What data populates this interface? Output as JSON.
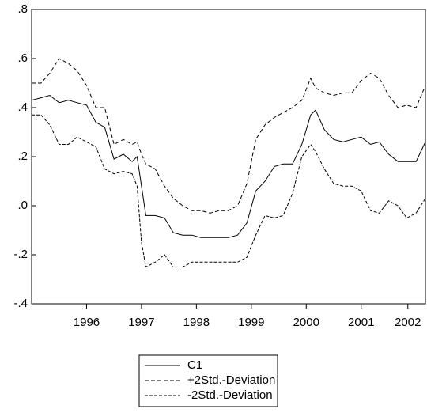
{
  "chart_data": {
    "type": "line",
    "x": [
      1995.5,
      1995.67,
      1995.83,
      1996.0,
      1996.17,
      1996.33,
      1996.5,
      1996.67,
      1996.83,
      1997.0,
      1997.17,
      1997.33,
      1997.42,
      1997.5,
      1997.58,
      1997.75,
      1997.92,
      1998.08,
      1998.25,
      1998.42,
      1998.58,
      1998.75,
      1998.92,
      1999.08,
      1999.25,
      1999.42,
      1999.58,
      1999.75,
      1999.92,
      2000.08,
      2000.25,
      2000.42,
      2000.58,
      2000.67,
      2000.83,
      2001.0,
      2001.17,
      2001.33,
      2001.5,
      2001.67,
      2001.83,
      2002.0,
      2002.17,
      2002.33,
      2002.5,
      2002.67
    ],
    "series": [
      {
        "name": "C1",
        "color": "#000000",
        "dash": "none",
        "values": [
          0.43,
          0.44,
          0.45,
          0.42,
          0.43,
          0.42,
          0.41,
          0.34,
          0.32,
          0.19,
          0.21,
          0.18,
          0.2,
          0.08,
          -0.04,
          -0.04,
          -0.05,
          -0.11,
          -0.12,
          -0.12,
          -0.13,
          -0.13,
          -0.13,
          -0.13,
          -0.12,
          -0.07,
          0.06,
          0.1,
          0.16,
          0.17,
          0.17,
          0.25,
          0.37,
          0.39,
          0.31,
          0.27,
          0.26,
          0.27,
          0.28,
          0.25,
          0.26,
          0.21,
          0.18,
          0.18,
          0.18,
          0.26
        ]
      },
      {
        "name": "+2Std.-Deviation",
        "color": "#000000",
        "dash": "5,3",
        "values": [
          0.5,
          0.5,
          0.54,
          0.6,
          0.58,
          0.55,
          0.49,
          0.4,
          0.4,
          0.25,
          0.27,
          0.25,
          0.26,
          0.21,
          0.17,
          0.15,
          0.08,
          0.03,
          0.0,
          -0.02,
          -0.02,
          -0.03,
          -0.02,
          -0.02,
          0.0,
          0.09,
          0.27,
          0.33,
          0.36,
          0.38,
          0.4,
          0.43,
          0.52,
          0.48,
          0.46,
          0.45,
          0.46,
          0.46,
          0.51,
          0.54,
          0.52,
          0.45,
          0.4,
          0.41,
          0.4,
          0.49
        ]
      },
      {
        "name": "-2Std.-Deviation",
        "color": "#000000",
        "dash": "4,2",
        "values": [
          0.37,
          0.37,
          0.33,
          0.25,
          0.25,
          0.28,
          0.26,
          0.24,
          0.15,
          0.13,
          0.14,
          0.13,
          0.08,
          -0.15,
          -0.25,
          -0.23,
          -0.2,
          -0.25,
          -0.25,
          -0.23,
          -0.23,
          -0.23,
          -0.23,
          -0.23,
          -0.23,
          -0.21,
          -0.12,
          -0.04,
          -0.05,
          -0.04,
          0.05,
          0.2,
          0.25,
          0.22,
          0.15,
          0.09,
          0.08,
          0.08,
          0.06,
          -0.02,
          -0.03,
          0.02,
          0.0,
          -0.05,
          -0.03,
          0.03
        ]
      }
    ],
    "xlim": [
      1995.5,
      2002.67
    ],
    "xticks": [
      {
        "value": 1996.5,
        "label": "1996"
      },
      {
        "value": 1997.5,
        "label": "1997"
      },
      {
        "value": 1998.5,
        "label": "1998"
      },
      {
        "value": 1999.5,
        "label": "1999"
      },
      {
        "value": 2000.5,
        "label": "2000"
      },
      {
        "value": 2001.5,
        "label": "2001"
      },
      {
        "value": 2002.35,
        "label": "2002"
      }
    ],
    "ylim": [
      -0.4,
      0.8
    ],
    "yticks": [
      {
        "value": -0.4,
        "label": "-.4"
      },
      {
        "value": -0.2,
        "label": "-.2"
      },
      {
        "value": 0,
        "label": ".0"
      },
      {
        "value": 0.2,
        "label": ".2"
      },
      {
        "value": 0.4,
        "label": ".4"
      },
      {
        "value": 0.6,
        "label": ".6"
      },
      {
        "value": 0.8,
        "label": ".8"
      }
    ],
    "grid": false
  }
}
